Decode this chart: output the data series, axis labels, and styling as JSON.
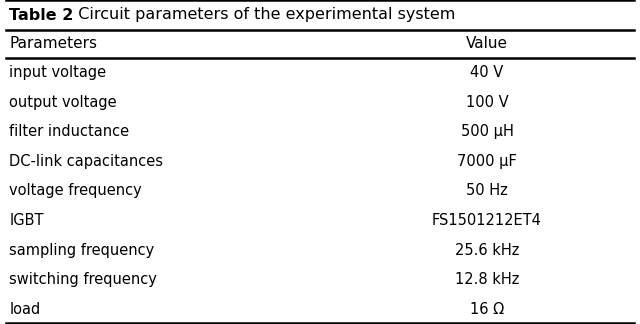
{
  "title_bold": "Table 2",
  "title_rest": "  Circuit parameters of the experimental system",
  "col_headers": [
    "Parameters",
    "Value"
  ],
  "rows": [
    [
      "input voltage",
      "40 V"
    ],
    [
      "output voltage",
      "100 V"
    ],
    [
      "filter inductance",
      "500 μH"
    ],
    [
      "DC-link capacitances",
      "7000 μF"
    ],
    [
      "voltage frequency",
      "50 Hz"
    ],
    [
      "IGBT",
      "FS1501212ET4"
    ],
    [
      "sampling frequency",
      "25.6 kHz"
    ],
    [
      "switching frequency",
      "12.8 kHz"
    ],
    [
      "load",
      "16 Ω"
    ]
  ],
  "bg_color": "#ffffff",
  "text_color": "#000000",
  "title_fontsize": 11.5,
  "header_fontsize": 11,
  "row_fontsize": 10.5,
  "col_split": 0.5,
  "fig_width": 6.4,
  "fig_height": 3.24,
  "dpi": 100
}
